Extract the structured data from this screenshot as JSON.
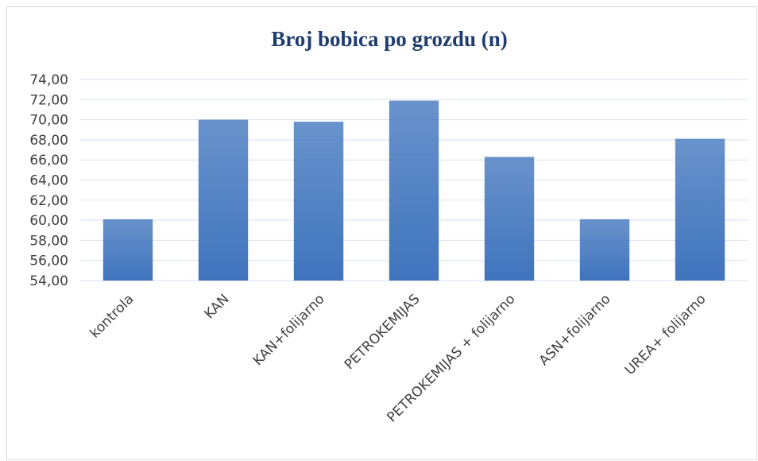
{
  "chart_data": {
    "type": "bar",
    "title": "Broj bobica po grozdu (n)",
    "categories": [
      "kontrola",
      "KAN",
      "KAN+folijarno",
      "PETROKEMIJAS",
      "PETROKEMIJAS + folijarno",
      "ASN+folijarno",
      "UREA+ folijarno"
    ],
    "values": [
      60.1,
      70.0,
      69.8,
      71.9,
      66.3,
      60.1,
      68.1
    ],
    "color": "#3f74bd",
    "ylim": [
      54,
      74
    ],
    "yticks": [
      {
        "value": 54,
        "label": "54,00"
      },
      {
        "value": 56,
        "label": "56,00"
      },
      {
        "value": 58,
        "label": "58,00"
      },
      {
        "value": 60,
        "label": "60,00"
      },
      {
        "value": 62,
        "label": "62,00"
      },
      {
        "value": 64,
        "label": "64,00"
      },
      {
        "value": 66,
        "label": "66,00"
      },
      {
        "value": 68,
        "label": "68,00"
      },
      {
        "value": 70,
        "label": "70,00"
      },
      {
        "value": 72,
        "label": "72,00"
      },
      {
        "value": 74,
        "label": "74,00"
      }
    ],
    "grid": true
  }
}
